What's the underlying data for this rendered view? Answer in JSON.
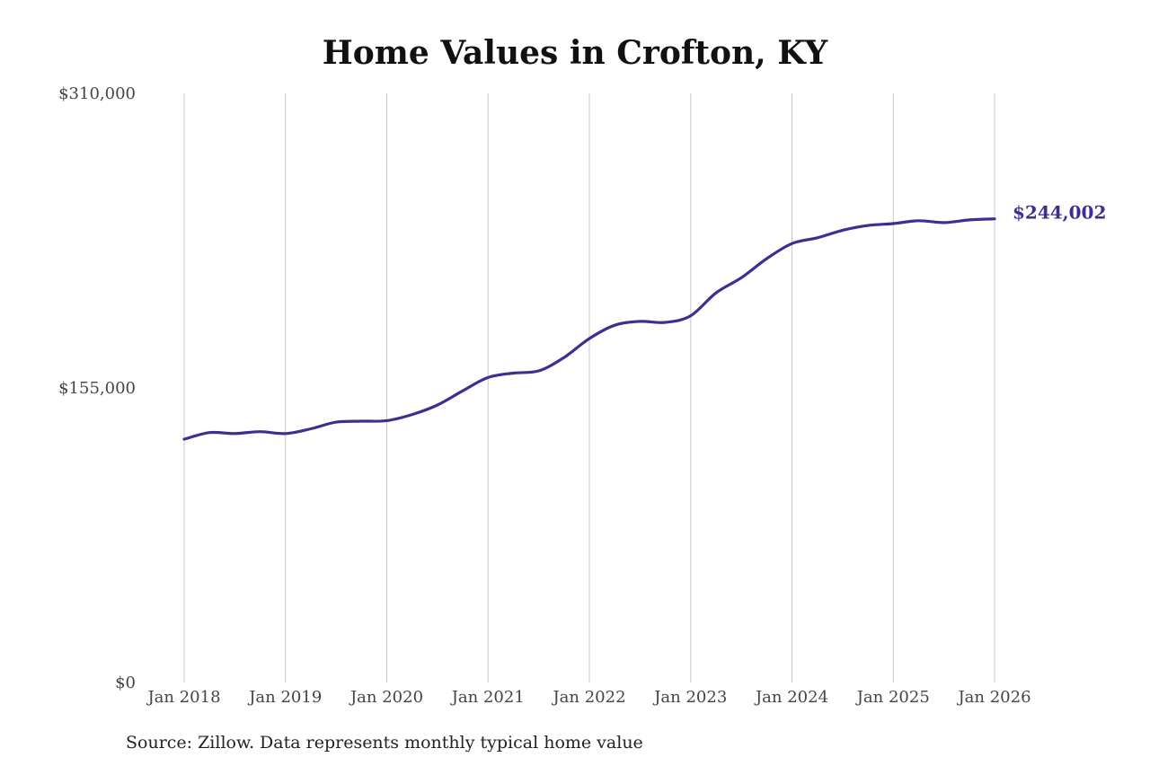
{
  "chart_data": {
    "type": "line",
    "title": "Home Values in Crofton, KY",
    "source_note": "Source: Zillow. Data represents monthly typical home value",
    "xlabel": "",
    "ylabel": "",
    "y_ticks": [
      "$310,000",
      "$155,000",
      "$0"
    ],
    "y_tick_values": [
      310000,
      155000,
      0
    ],
    "ylim": [
      0,
      310000
    ],
    "x_ticks": [
      "Jan 2018",
      "Jan 2019",
      "Jan 2020",
      "Jan 2021",
      "Jan 2022",
      "Jan 2023",
      "Jan 2024",
      "Jan 2025",
      "Jan 2026"
    ],
    "xlim": [
      "Jan 2018",
      "Jan 2026"
    ],
    "grid": "vertical",
    "line_color": "#3b3091",
    "end_label": "$244,002",
    "series": [
      {
        "x": [
          "Jan 2018",
          "Apr 2018",
          "Jul 2018",
          "Oct 2018",
          "Jan 2019",
          "Apr 2019",
          "Jul 2019",
          "Oct 2019",
          "Jan 2020",
          "Apr 2020",
          "Jul 2020",
          "Oct 2020",
          "Jan 2021",
          "Apr 2021",
          "Jul 2021",
          "Oct 2021",
          "Jan 2022",
          "Apr 2022",
          "Jul 2022",
          "Oct 2022",
          "Jan 2023",
          "Apr 2023",
          "Jul 2023",
          "Oct 2023",
          "Jan 2024",
          "Apr 2024",
          "Jul 2024",
          "Oct 2024",
          "Jan 2025",
          "Apr 2025",
          "Jul 2025",
          "Oct 2025",
          "Jan 2026"
        ],
        "values": [
          128000,
          131500,
          131000,
          132000,
          131000,
          133500,
          137000,
          137500,
          137800,
          141000,
          146000,
          153500,
          160500,
          162800,
          164000,
          171000,
          181000,
          188000,
          190000,
          189500,
          193000,
          205000,
          213000,
          223000,
          231000,
          234000,
          238000,
          240500,
          241500,
          243000,
          242000,
          243400,
          244002
        ]
      }
    ]
  }
}
